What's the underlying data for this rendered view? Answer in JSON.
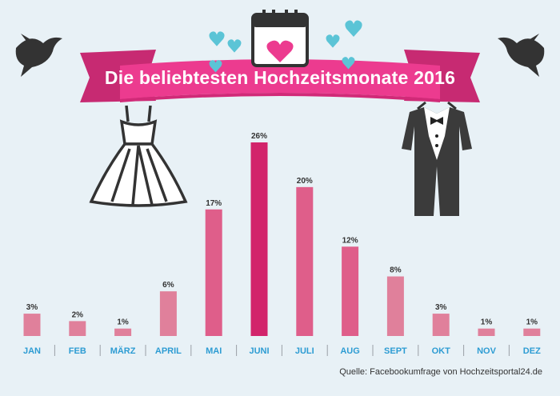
{
  "title": "Die beliebtesten Hochzeitsmonate 2016",
  "source": "Quelle: Facebookumfrage von Hochzeitsportal24.de",
  "colors": {
    "bar_light": "#e0809b",
    "bar_mid": "#df5e8a",
    "bar_dark": "#d2246b",
    "label": "#2d9cd3",
    "banner": "#ec3b8f",
    "heart": "#5bc4d6"
  },
  "icons": [
    "dove-icon",
    "calendar-heart-icon",
    "heart-icon",
    "wedding-dress-icon",
    "tuxedo-icon"
  ],
  "chart_data": {
    "type": "bar",
    "categories": [
      "JAN",
      "FEB",
      "MÄRZ",
      "APRIL",
      "MAI",
      "JUNI",
      "JULI",
      "AUG",
      "SEPT",
      "OKT",
      "NOV",
      "DEZ"
    ],
    "values": [
      3,
      2,
      1,
      6,
      17,
      26,
      20,
      12,
      8,
      3,
      1,
      1
    ],
    "value_labels": [
      "3%",
      "2%",
      "1%",
      "6%",
      "17%",
      "26%",
      "20%",
      "12%",
      "8%",
      "3%",
      "1%",
      "1%"
    ],
    "title": "Die beliebtesten Hochzeitsmonate 2016",
    "ylim": [
      0,
      26
    ],
    "grid": false,
    "legend": "none"
  }
}
